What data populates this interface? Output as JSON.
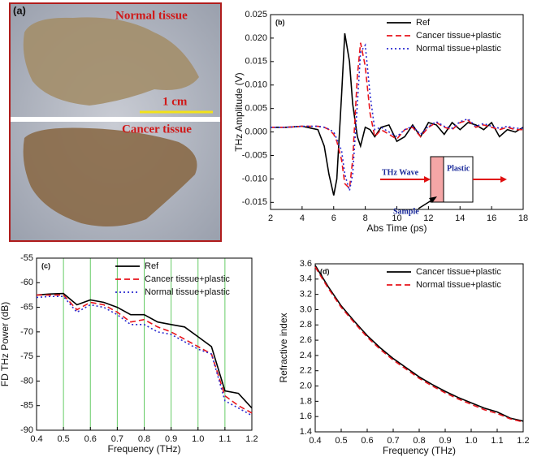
{
  "photo": {
    "panel": "(a)",
    "top_label": "Normal tissue",
    "scale_bar": "1 cm",
    "bottom_label": "Cancer tissue"
  },
  "chart_data": [
    {
      "type": "line",
      "panel": "(b)",
      "x_label": "Abs Time (ps)",
      "y_label": "THz Amplitude (V)",
      "xlim": [
        2,
        18
      ],
      "xticks": [
        2,
        4,
        6,
        8,
        10,
        12,
        14,
        16,
        18
      ],
      "ylim": [
        -0.0165,
        0.025
      ],
      "yticks": [
        -0.015,
        {
          "value": -0.01,
          "label": "-0.010"
        },
        -0.005,
        {
          "value": 0,
          "label": "0.000"
        },
        0.005,
        {
          "value": 0.01,
          "label": "0.010"
        },
        0.015,
        {
          "value": 0.02,
          "label": "0.020"
        },
        0.025
      ],
      "grid": false,
      "legend": "top-right",
      "annotations": [
        "THz Wave",
        "Plastic",
        "Sample"
      ],
      "x": [
        2,
        3,
        4,
        5,
        5.4,
        5.7,
        6.0,
        6.2,
        6.5,
        6.7,
        7.0,
        7.2,
        7.5,
        7.7,
        8.0,
        8.3,
        8.6,
        9,
        9.5,
        10,
        10.5,
        11,
        11.5,
        12,
        12.5,
        13,
        13.5,
        14,
        14.5,
        15,
        15.5,
        16,
        16.5,
        17,
        17.5,
        18
      ],
      "series": [
        {
          "name": "Ref",
          "color": "#000000",
          "style": "solid",
          "values": [
            0.001,
            0.001,
            0.0012,
            0.0005,
            -0.003,
            -0.009,
            -0.0135,
            -0.01,
            0.008,
            0.021,
            0.015,
            0.006,
            -0.001,
            -0.003,
            0.001,
            0.0005,
            -0.001,
            0.001,
            0.0015,
            -0.002,
            -0.001,
            0.0015,
            -0.001,
            0.002,
            0.0015,
            -0.0005,
            0.002,
            0.0005,
            0.002,
            0.0015,
            0.0005,
            0.002,
            -0.001,
            0.0005,
            0,
            0.001
          ]
        },
        {
          "name": "Cancer tissue+plastic",
          "color": "#e8141c",
          "style": "dashed",
          "values": [
            0.001,
            0.001,
            0.0012,
            0.0012,
            0.001,
            0.0005,
            -0.0005,
            -0.002,
            -0.006,
            -0.011,
            -0.012,
            -0.006,
            0.012,
            0.019,
            0.014,
            0.004,
            -0.001,
            0.0005,
            -0.0005,
            -0.0015,
            0.0005,
            0.001,
            -0.001,
            0.001,
            0.002,
            0.001,
            0.0005,
            0.002,
            0.0025,
            0.001,
            0.0015,
            0.001,
            0.0005,
            0.001,
            0.0005,
            0.0005
          ]
        },
        {
          "name": "Normal tissue+plastic",
          "color": "#2a2ad0",
          "style": "dotted",
          "values": [
            0.001,
            0.001,
            0.0012,
            0.0012,
            0.001,
            0.0006,
            0,
            -0.0015,
            -0.004,
            -0.009,
            -0.0125,
            -0.009,
            0.006,
            0.017,
            0.0185,
            0.008,
            0.0005,
            0.001,
            0,
            -0.001,
            0.0005,
            0.0012,
            -0.0005,
            0.0012,
            0.0022,
            0.0012,
            0.0008,
            0.0022,
            0.0028,
            0.0012,
            0.0018,
            0.0012,
            0.0008,
            0.0012,
            0.0008,
            0.0008
          ]
        }
      ]
    },
    {
      "type": "line",
      "panel": "(c)",
      "x_label": "Frequency (THz)",
      "y_label": "FD THz Power (dB)",
      "xlim": [
        0.4,
        1.2
      ],
      "xticks": [
        0.4,
        0.5,
        0.6,
        0.7,
        0.8,
        0.9,
        {
          "value": 1.0,
          "label": "1.0"
        },
        1.1,
        1.2
      ],
      "ylim": [
        -90,
        -55
      ],
      "yticks": [
        -90,
        -85,
        -80,
        -75,
        -70,
        -65,
        -60,
        -55
      ],
      "grid": true,
      "grid_color": "#66cc66",
      "legend": "top-right",
      "x": [
        0.4,
        0.45,
        0.5,
        0.55,
        0.6,
        0.65,
        0.7,
        0.75,
        0.8,
        0.85,
        0.9,
        0.95,
        1.0,
        1.05,
        1.1,
        1.15,
        1.2
      ],
      "series": [
        {
          "name": "Ref",
          "color": "#000000",
          "style": "solid",
          "values": [
            -62.5,
            -62.3,
            -62.2,
            -64.5,
            -63.5,
            -64,
            -65,
            -66.5,
            -66.5,
            -68,
            -68.5,
            -69,
            -71,
            -73,
            -82,
            -82.5,
            -85.5
          ]
        },
        {
          "name": "Cancer tissue+plastic",
          "color": "#e8141c",
          "style": "dashed",
          "values": [
            -62.5,
            -62.5,
            -62.5,
            -65.5,
            -64,
            -64.5,
            -66,
            -68,
            -67.5,
            -69,
            -70,
            -71.5,
            -73,
            -74.5,
            -83,
            -85,
            -86.5
          ]
        },
        {
          "name": "Normal tissue+plastic",
          "color": "#2a2ad0",
          "style": "dotted",
          "values": [
            -63,
            -62.8,
            -62.8,
            -66,
            -64.5,
            -65,
            -66.5,
            -68.5,
            -68.5,
            -70,
            -70.5,
            -72,
            -73.5,
            -74.5,
            -84,
            -85.5,
            -87
          ]
        }
      ]
    },
    {
      "type": "line",
      "panel": "(d)",
      "x_label": "Frequency (THz)",
      "y_label": "Refractive index",
      "xlim": [
        0.4,
        1.2
      ],
      "xticks": [
        0.4,
        0.5,
        0.6,
        0.7,
        0.8,
        0.9,
        {
          "value": 1.0,
          "label": "1.0"
        },
        1.1,
        1.2
      ],
      "ylim": [
        1.4,
        3.6
      ],
      "yticks": [
        1.4,
        1.6,
        1.8,
        {
          "value": 2.0,
          "label": "2.0"
        },
        2.2,
        2.4,
        2.6,
        2.8,
        {
          "value": 3.0,
          "label": "3.0"
        },
        3.2,
        3.4,
        3.6
      ],
      "grid": false,
      "legend": "top-right",
      "x": [
        0.4,
        0.45,
        0.5,
        0.55,
        0.6,
        0.65,
        0.7,
        0.75,
        0.8,
        0.85,
        0.9,
        0.95,
        1.0,
        1.05,
        1.1,
        1.15,
        1.2
      ],
      "series": [
        {
          "name": "Cancer tissue+plastic",
          "color": "#000000",
          "style": "solid",
          "values": [
            3.58,
            3.3,
            3.05,
            2.85,
            2.66,
            2.5,
            2.36,
            2.24,
            2.12,
            2.02,
            1.93,
            1.85,
            1.78,
            1.71,
            1.66,
            1.58,
            1.54
          ]
        },
        {
          "name": "Normal tissue+plastic",
          "color": "#e8141c",
          "style": "dashed",
          "values": [
            3.56,
            3.28,
            3.03,
            2.83,
            2.64,
            2.48,
            2.34,
            2.22,
            2.1,
            2.0,
            1.91,
            1.83,
            1.76,
            1.69,
            1.64,
            1.57,
            1.53
          ]
        }
      ]
    }
  ]
}
